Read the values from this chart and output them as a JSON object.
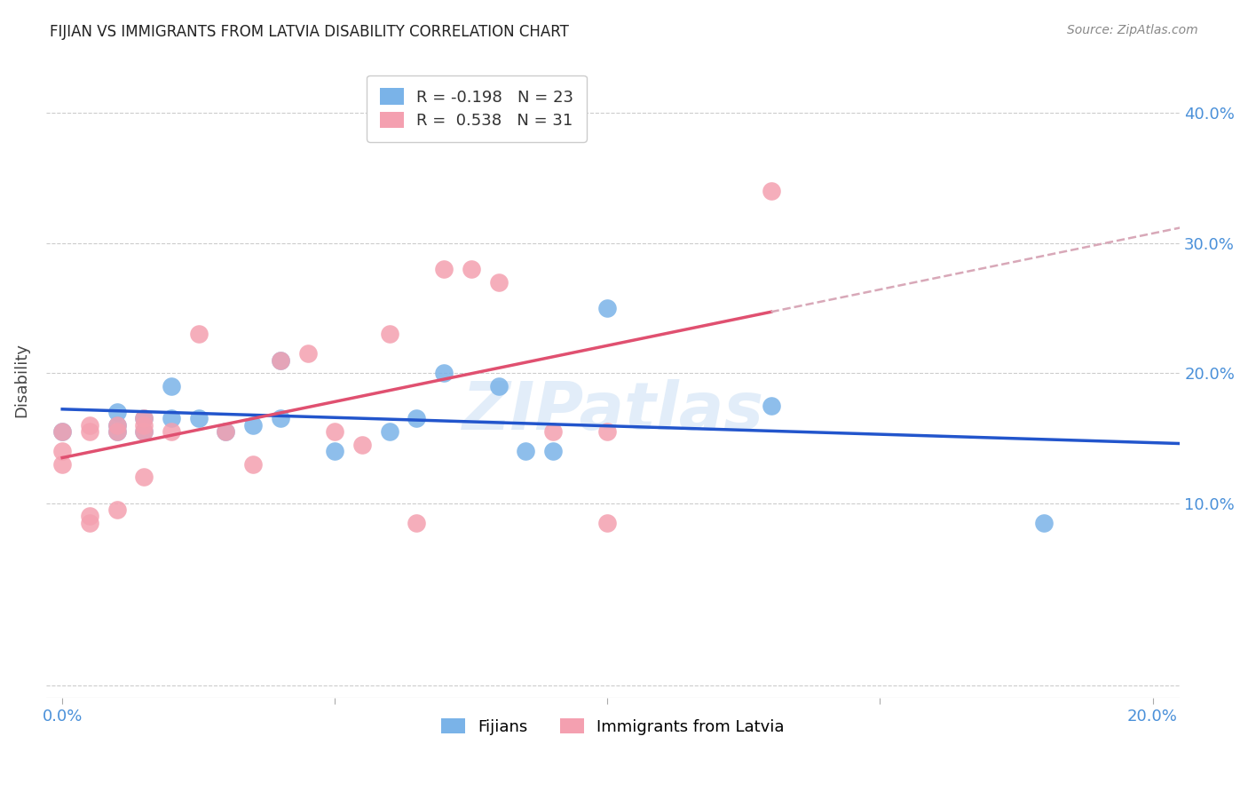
{
  "title": "FIJIAN VS IMMIGRANTS FROM LATVIA DISABILITY CORRELATION CHART",
  "source": "Source: ZipAtlas.com",
  "tick_color": "#4a90d9",
  "ylabel": "Disability",
  "xlim": [
    -0.003,
    0.205
  ],
  "ylim": [
    -0.05,
    0.44
  ],
  "ytick_labels": [
    "",
    "10.0%",
    "20.0%",
    "30.0%",
    "40.0%"
  ],
  "ytick_values": [
    -0.04,
    0.1,
    0.2,
    0.3,
    0.4
  ],
  "xtick_labels": [
    "0.0%",
    "",
    "",
    "",
    "20.0%"
  ],
  "xtick_values": [
    0.0,
    0.05,
    0.1,
    0.15,
    0.2
  ],
  "grid_color": "#cccccc",
  "background_color": "#ffffff",
  "fijians_color": "#7ab3e8",
  "latvia_color": "#f4a0b0",
  "fijians_line_color": "#2255cc",
  "latvia_line_color": "#e05070",
  "latvia_dashed_color": "#d8a8b8",
  "watermark": "ZIPatlas",
  "legend_R_fijians": "R = -0.198",
  "legend_N_fijians": "N = 23",
  "legend_R_latvia": "R =  0.538",
  "legend_N_latvia": "N = 31",
  "fijians_x": [
    0.0,
    0.01,
    0.01,
    0.01,
    0.015,
    0.015,
    0.02,
    0.02,
    0.025,
    0.03,
    0.035,
    0.04,
    0.04,
    0.05,
    0.06,
    0.065,
    0.07,
    0.08,
    0.085,
    0.09,
    0.1,
    0.13,
    0.18
  ],
  "fijians_y": [
    0.155,
    0.155,
    0.16,
    0.17,
    0.155,
    0.165,
    0.165,
    0.19,
    0.165,
    0.155,
    0.16,
    0.165,
    0.21,
    0.14,
    0.155,
    0.165,
    0.2,
    0.19,
    0.14,
    0.14,
    0.25,
    0.175,
    0.085
  ],
  "latvia_x": [
    0.0,
    0.0,
    0.0,
    0.005,
    0.005,
    0.005,
    0.005,
    0.01,
    0.01,
    0.01,
    0.015,
    0.015,
    0.015,
    0.015,
    0.02,
    0.025,
    0.03,
    0.035,
    0.04,
    0.045,
    0.05,
    0.055,
    0.06,
    0.065,
    0.07,
    0.075,
    0.08,
    0.09,
    0.1,
    0.1,
    0.13
  ],
  "latvia_y": [
    0.13,
    0.14,
    0.155,
    0.085,
    0.09,
    0.155,
    0.16,
    0.095,
    0.155,
    0.16,
    0.12,
    0.155,
    0.16,
    0.165,
    0.155,
    0.23,
    0.155,
    0.13,
    0.21,
    0.215,
    0.155,
    0.145,
    0.23,
    0.085,
    0.28,
    0.28,
    0.27,
    0.155,
    0.085,
    0.155,
    0.34
  ]
}
